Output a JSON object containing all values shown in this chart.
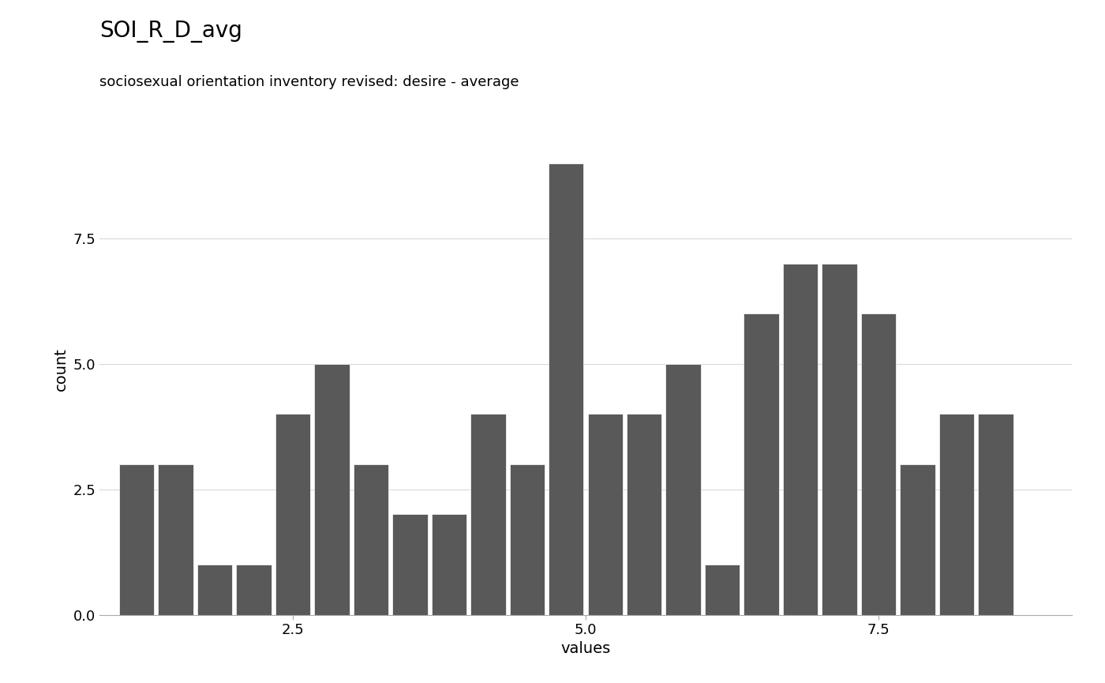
{
  "title": "SOI_R_D_avg",
  "subtitle": "sociosexual orientation inventory revised: desire - average",
  "xlabel": "values",
  "ylabel": "count",
  "bar_color": "#595959",
  "bar_edge_color": "#ffffff",
  "background_color": "#ffffff",
  "plot_bg_color": "#ffffff",
  "grid_color": "#d9d9d9",
  "title_fontsize": 20,
  "subtitle_fontsize": 13,
  "axis_label_fontsize": 14,
  "tick_fontsize": 13,
  "bar_centers": [
    1.167,
    1.5,
    1.833,
    2.167,
    2.5,
    2.833,
    3.167,
    3.5,
    3.833,
    4.167,
    4.5,
    4.833,
    5.167,
    5.5,
    5.833,
    6.167,
    6.5,
    6.833,
    7.167,
    7.5,
    7.833,
    8.167,
    8.5
  ],
  "bar_heights": [
    3,
    3,
    1,
    1,
    4,
    5,
    3,
    2,
    2,
    4,
    3,
    9,
    4,
    4,
    5,
    1,
    6,
    7,
    7,
    6,
    3,
    4,
    4
  ],
  "bin_width": 0.3,
  "xlim": [
    0.85,
    9.15
  ],
  "ylim": [
    0.0,
    9.8
  ],
  "yticks": [
    0.0,
    2.5,
    5.0,
    7.5
  ],
  "xticks": [
    2.5,
    5.0,
    7.5
  ]
}
